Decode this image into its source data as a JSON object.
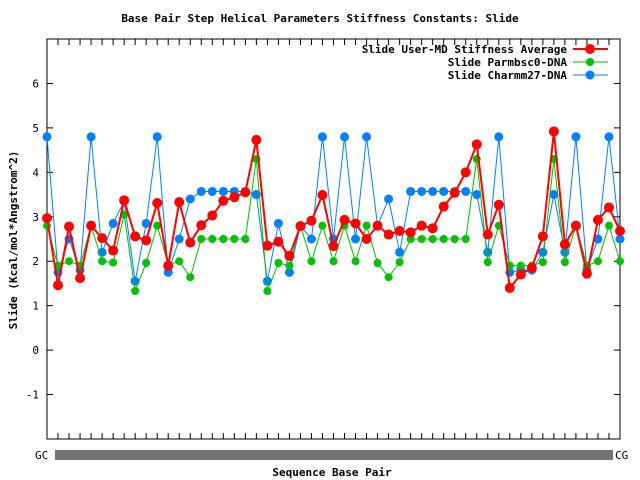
{
  "chart_data": {
    "type": "line",
    "title": "Base Pair Step Helical Parameters Stiffness Constants: Slide",
    "xlabel": "Sequence Base Pair",
    "ylabel": "Slide (Kcal/mol*Angstrom^2)",
    "ylim": [
      -2,
      7
    ],
    "yticks": [
      -1,
      0,
      1,
      2,
      3,
      4,
      5,
      6
    ],
    "x_tick_labels_first": "GC",
    "x_tick_labels_last": "CG",
    "x_tick_labels_note": "Remaining tick labels overlap and are unreadable",
    "legend_position": "top-right",
    "grid": false,
    "series": [
      {
        "name": "Slide User-MD Stiffness Average",
        "color": "#ff0000",
        "values": [
          2.97,
          1.46,
          2.78,
          1.62,
          2.8,
          2.52,
          2.24,
          3.37,
          2.56,
          2.47,
          3.31,
          1.9,
          3.33,
          2.42,
          2.81,
          3.03,
          3.36,
          3.44,
          3.55,
          4.73,
          2.35,
          2.44,
          2.12,
          2.79,
          2.91,
          3.49,
          2.34,
          2.93,
          2.85,
          2.5,
          2.8,
          2.6,
          2.68,
          2.65,
          2.8,
          2.74,
          3.23,
          3.54,
          4.0,
          4.63,
          2.6,
          3.27,
          1.4,
          1.7,
          1.85,
          2.56,
          4.92,
          2.38,
          2.8,
          1.72,
          2.93,
          3.21,
          2.68
        ]
      },
      {
        "name": "Slide Parmbsc0-DNA",
        "color": "#00c000",
        "values": [
          2.8,
          1.9,
          2.0,
          1.9,
          2.8,
          2.0,
          1.97,
          3.05,
          1.33,
          1.96,
          2.8,
          1.92,
          2.0,
          1.64,
          2.5,
          2.5,
          2.5,
          2.5,
          2.5,
          4.3,
          1.33,
          1.96,
          1.9,
          2.8,
          2.0,
          2.8,
          2.0,
          2.8,
          2.0,
          2.8,
          1.96,
          1.64,
          1.98,
          2.5,
          2.5,
          2.5,
          2.5,
          2.5,
          2.5,
          4.3,
          1.98,
          2.8,
          1.9,
          1.9,
          1.9,
          1.98,
          4.3,
          1.98,
          2.8,
          1.9,
          2.0,
          2.8,
          2.0
        ]
      },
      {
        "name": "Slide Charmm27-DNA",
        "color": "#0080ff",
        "values": [
          4.8,
          1.75,
          2.5,
          1.8,
          4.8,
          2.2,
          2.85,
          3.35,
          1.55,
          2.85,
          4.8,
          1.75,
          2.5,
          3.4,
          3.57,
          3.57,
          3.57,
          3.57,
          3.57,
          3.5,
          1.55,
          2.85,
          1.75,
          2.8,
          2.5,
          4.8,
          2.5,
          4.8,
          2.5,
          4.8,
          2.8,
          3.4,
          2.2,
          3.57,
          3.57,
          3.57,
          3.57,
          3.57,
          3.57,
          3.5,
          2.2,
          4.8,
          1.75,
          1.8,
          1.8,
          2.2,
          3.5,
          2.2,
          4.8,
          1.8,
          2.5,
          4.8,
          2.5
        ]
      }
    ]
  }
}
